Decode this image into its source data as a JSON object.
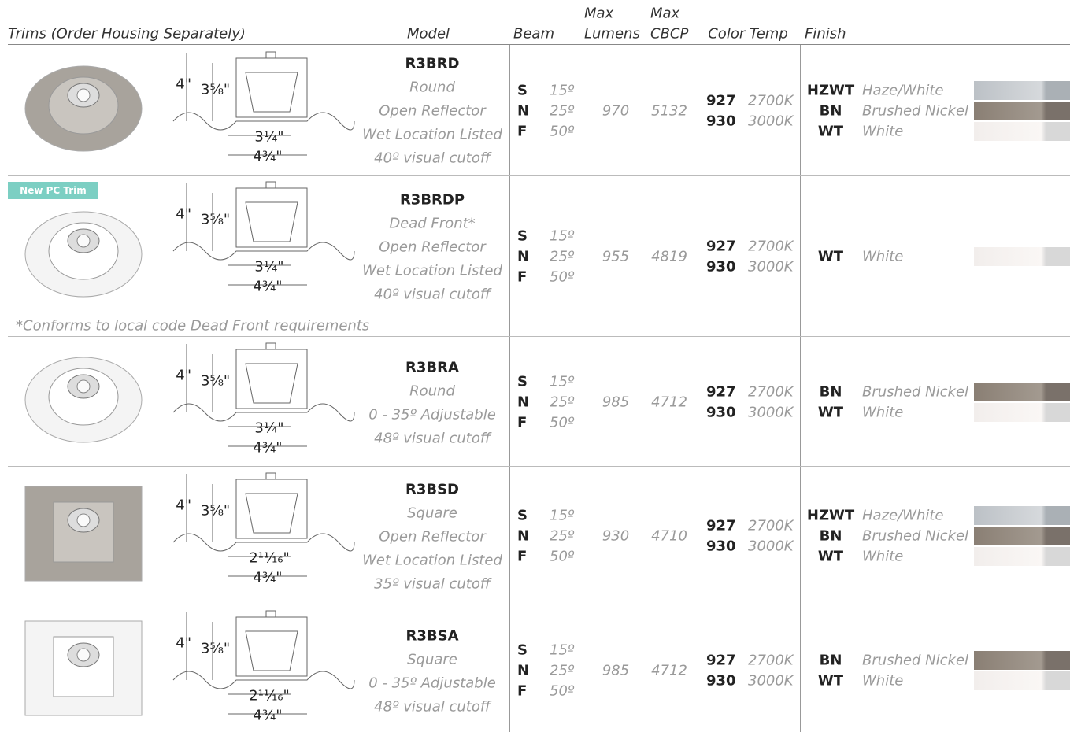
{
  "header": {
    "trims": "Trims (Order Housing Separately)",
    "model": "Model",
    "beam": "Beam",
    "max_lumens": [
      "Max",
      "Lumens"
    ],
    "max_cbcp": [
      "Max",
      "CBCP"
    ],
    "color_temp": "Color Temp",
    "finish": "Finish"
  },
  "rows": [
    {
      "model": "R3BRD",
      "description": [
        "Round",
        "Open Reflector",
        "Wet Location Listed",
        "40º visual cutoff"
      ],
      "dimensions": {
        "height": "4\"",
        "inner_height": "3⅝\"",
        "cutout": "3¼\"",
        "diameter": "4¾\""
      },
      "beams": [
        {
          "code": "S",
          "angle": "15º"
        },
        {
          "code": "N",
          "angle": "25º"
        },
        {
          "code": "F",
          "angle": "50º"
        }
      ],
      "max_lumens": 970,
      "max_cbcp": 5132,
      "color_temps": [
        {
          "code": "927",
          "kelvin": "2700K"
        },
        {
          "code": "930",
          "kelvin": "3000K"
        }
      ],
      "finishes": [
        {
          "code": "HZWT",
          "name": "Haze/White"
        },
        {
          "code": "BN",
          "name": "Brushed Nickel"
        },
        {
          "code": "WT",
          "name": "White"
        }
      ]
    },
    {
      "badge": "New PC Trim",
      "model": "R3BRDP",
      "description": [
        "Dead Front*",
        "Open Reflector",
        "Wet Location Listed",
        "40º visual cutoff"
      ],
      "dimensions": {
        "height": "4\"",
        "inner_height": "3⅝\"",
        "cutout": "3¼\"",
        "diameter": "4¾\""
      },
      "beams": [
        {
          "code": "S",
          "angle": "15º"
        },
        {
          "code": "N",
          "angle": "25º"
        },
        {
          "code": "F",
          "angle": "50º"
        }
      ],
      "max_lumens": 955,
      "max_cbcp": 4819,
      "color_temps": [
        {
          "code": "927",
          "kelvin": "2700K"
        },
        {
          "code": "930",
          "kelvin": "3000K"
        }
      ],
      "finishes": [
        {
          "code": "WT",
          "name": "White"
        }
      ],
      "footnote": "*Conforms to local code Dead Front requirements"
    },
    {
      "model": "R3BRA",
      "description": [
        "Round",
        "0 - 35º Adjustable",
        "48º visual cutoff"
      ],
      "dimensions": {
        "height": "4\"",
        "inner_height": "3⅝\"",
        "cutout": "3¼\"",
        "diameter": "4¾\""
      },
      "beams": [
        {
          "code": "S",
          "angle": "15º"
        },
        {
          "code": "N",
          "angle": "25º"
        },
        {
          "code": "F",
          "angle": "50º"
        }
      ],
      "max_lumens": 985,
      "max_cbcp": 4712,
      "color_temps": [
        {
          "code": "927",
          "kelvin": "2700K"
        },
        {
          "code": "930",
          "kelvin": "3000K"
        }
      ],
      "finishes": [
        {
          "code": "BN",
          "name": "Brushed Nickel"
        },
        {
          "code": "WT",
          "name": "White"
        }
      ]
    },
    {
      "model": "R3BSD",
      "description": [
        "Square",
        "Open Reflector",
        "Wet Location Listed",
        "35º visual cutoff"
      ],
      "dimensions": {
        "height": "4\"",
        "inner_height": "3⅝\"",
        "cutout": "2¹¹⁄₁₆\"",
        "diameter": "4¾\""
      },
      "beams": [
        {
          "code": "S",
          "angle": "15º"
        },
        {
          "code": "N",
          "angle": "25º"
        },
        {
          "code": "F",
          "angle": "50º"
        }
      ],
      "max_lumens": 930,
      "max_cbcp": 4710,
      "color_temps": [
        {
          "code": "927",
          "kelvin": "2700K"
        },
        {
          "code": "930",
          "kelvin": "3000K"
        }
      ],
      "finishes": [
        {
          "code": "HZWT",
          "name": "Haze/White"
        },
        {
          "code": "BN",
          "name": "Brushed Nickel"
        },
        {
          "code": "WT",
          "name": "White"
        }
      ]
    },
    {
      "model": "R3BSA",
      "description": [
        "Square",
        "0 - 35º Adjustable",
        "48º visual cutoff"
      ],
      "dimensions": {
        "height": "4\"",
        "inner_height": "3⅝\"",
        "cutout": "2¹¹⁄₁₆\"",
        "diameter": "4¾\""
      },
      "beams": [
        {
          "code": "S",
          "angle": "15º"
        },
        {
          "code": "N",
          "angle": "25º"
        },
        {
          "code": "F",
          "angle": "50º"
        }
      ],
      "max_lumens": 985,
      "max_cbcp": 4712,
      "color_temps": [
        {
          "code": "927",
          "kelvin": "2700K"
        },
        {
          "code": "930",
          "kelvin": "3000K"
        }
      ],
      "finishes": [
        {
          "code": "BN",
          "name": "Brushed Nickel"
        },
        {
          "code": "WT",
          "name": "White"
        }
      ]
    }
  ]
}
